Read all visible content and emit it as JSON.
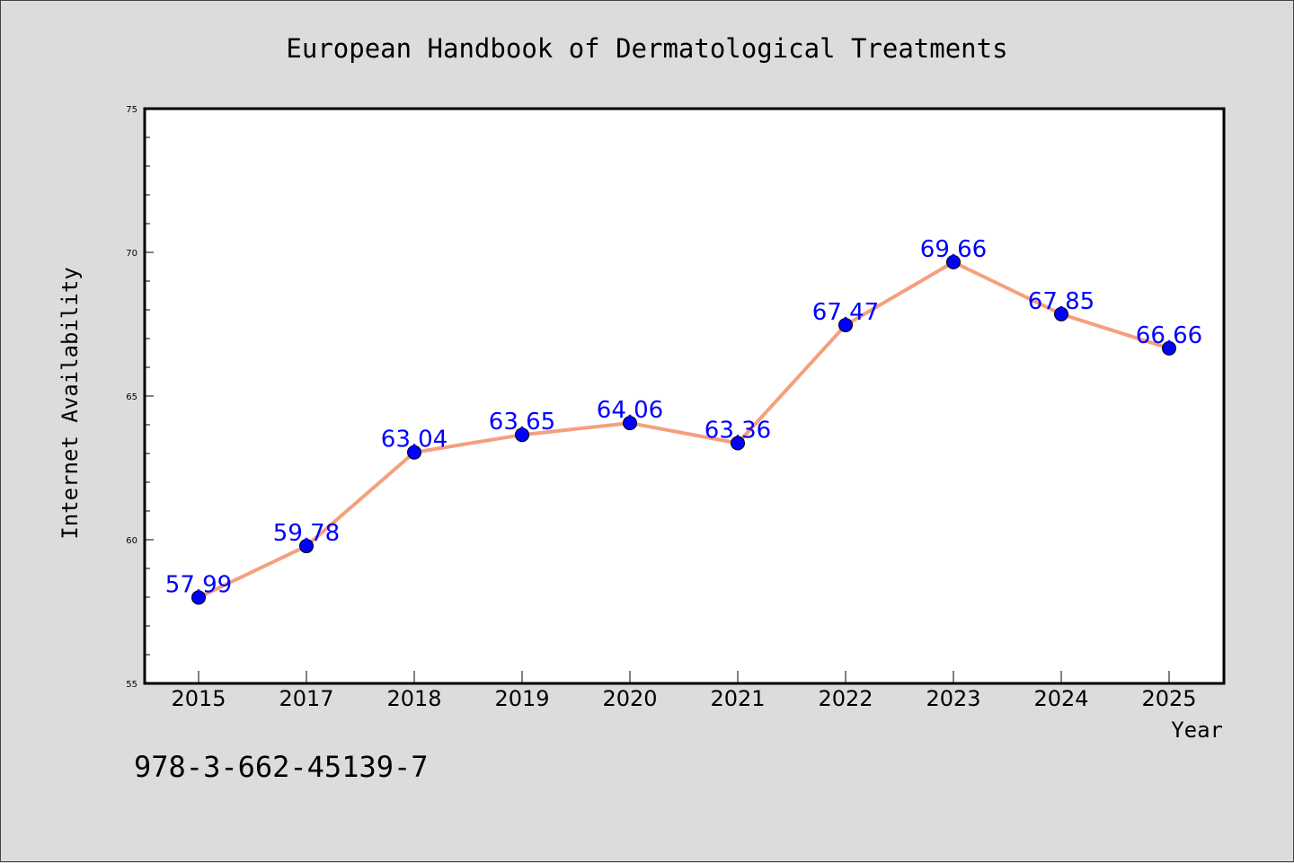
{
  "chart_data": {
    "type": "line",
    "title": "European Handbook of Dermatological Treatments",
    "xlabel": "Year",
    "ylabel": "Internet Availability",
    "categories": [
      "2015",
      "2017",
      "2018",
      "2019",
      "2020",
      "2021",
      "2022",
      "2023",
      "2024",
      "2025"
    ],
    "series": [
      {
        "values": [
          57.99,
          59.78,
          63.04,
          63.65,
          64.06,
          63.36,
          67.47,
          69.66,
          67.85,
          66.66
        ],
        "data_labels": [
          "57.99",
          "59.78",
          "63.04",
          "63.65",
          "64.06",
          "63.36",
          "67.47",
          "69.66",
          "67.85",
          "66.66"
        ]
      }
    ],
    "ylim": [
      55,
      75
    ],
    "yticks": [
      "55",
      "60",
      "65",
      "70",
      "75"
    ],
    "grid": false,
    "legend": "none",
    "colors": {
      "line": "#f4a07e",
      "marker": "#0000ff",
      "label": "#0000ff",
      "background": "#dcdcdc",
      "plot_background": "#ffffff"
    }
  },
  "footer": {
    "isbn": "978-3-662-45139-7"
  }
}
